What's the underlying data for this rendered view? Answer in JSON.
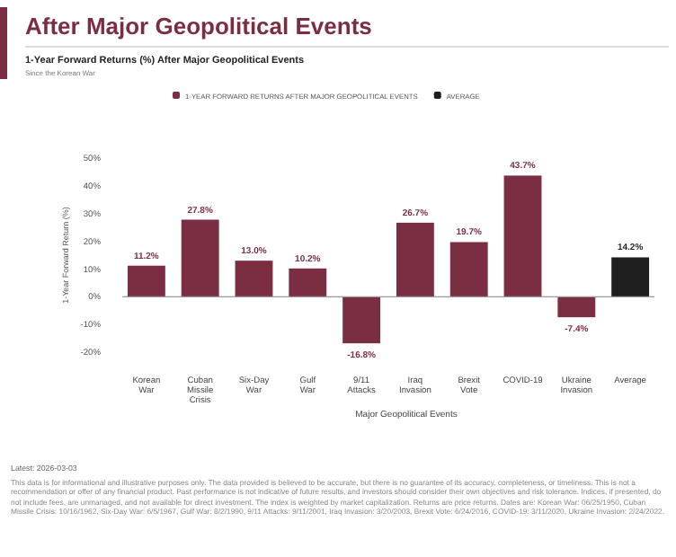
{
  "chart_data": {
    "type": "bar",
    "title": "After Major Geopolitical Events",
    "subtitle": "1-Year Forward Returns (%) After Major Geopolitical Events",
    "xlabel": "Major Geopolitical Events",
    "ylabel": "1-Year Forward Return (%)",
    "categories": [
      "Korean War",
      "Cuban Missile Crisis",
      "Six-Day War",
      "Gulf War",
      "9/11 Attacks",
      "Iraq Invasion",
      "Brexit Vote",
      "COVID-19",
      "Ukraine Invasion",
      "Average"
    ],
    "series": [
      {
        "name": "1-YEAR FORWARD RETURNS AFTER MAJOR GEOPOLITICAL EVENTS",
        "color": "#7b2d42",
        "values": [
          11.2,
          27.8,
          13.0,
          10.2,
          -16.8,
          26.7,
          19.7,
          43.7,
          -7.4,
          null
        ],
        "value_labels": [
          "11.2%",
          "27.8%",
          "13.0%",
          "10.2%",
          "-16.8%",
          "26.7%",
          "19.7%",
          "43.7%",
          "-7.4%",
          null
        ]
      },
      {
        "name": "AVERAGE",
        "color": "#1e1e1e",
        "values": [
          null,
          null,
          null,
          null,
          null,
          null,
          null,
          null,
          null,
          14.2
        ],
        "value_labels": [
          null,
          null,
          null,
          null,
          null,
          null,
          null,
          null,
          null,
          "14.2%"
        ]
      }
    ],
    "ylim": [
      -20,
      50
    ],
    "ref_lines": [
      {
        "axis": "y",
        "value": 0
      }
    ],
    "yticks": [
      {
        "value": -20,
        "label": "-20%"
      },
      {
        "value": -10,
        "label": "-10%"
      },
      {
        "value": 0,
        "label": "0%"
      },
      {
        "value": 10,
        "label": "10%"
      },
      {
        "value": 20,
        "label": "20%"
      },
      {
        "value": 30,
        "label": "30%"
      },
      {
        "value": 40,
        "label": "40%"
      },
      {
        "value": 50,
        "label": "50%"
      }
    ],
    "legend": "top",
    "annotations": [
      "Since the Korean War",
      "Latest: 2026-03-03",
      "This data is for informational and illustrative purposes only. The data provided is believed to be accurate, but there is no guarantee of its accuracy, completeness, or timeliness. This is not a recommendation or offer of any financial product. Past performance is not indicative of future results, and investors should consider their own objectives and risk tolerance. Indices, if presented, do not include fees, are unmanaged, and not available for direct investment. The index is weighted by market capitalization. Returns are price returns. Dates are: Korean War: 06/25/1950, Cuban Missile Crisis: 10/16/1962, Six-Day War: 6/5/1967, Gulf War: 8/2/1990, 9/11 Attacks: 9/11/2001, Iraq Invasion: 3/20/2003, Brexit Vote: 6/24/2016, COVID-19: 3/11/2020, Ukraine Invasion: 2/24/2022."
    ]
  }
}
